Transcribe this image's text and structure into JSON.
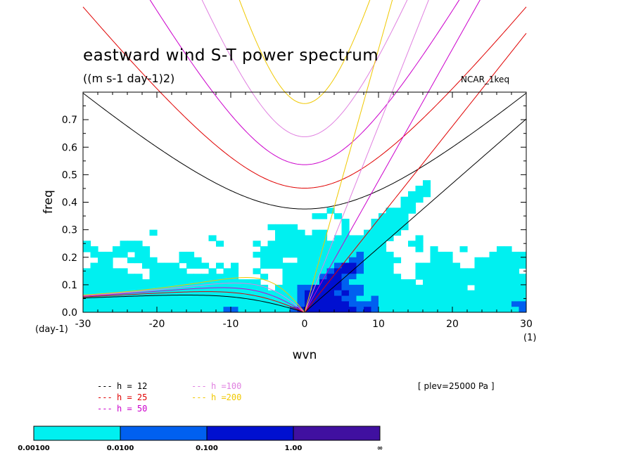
{
  "chart_data": {
    "type": "contour",
    "title": "eastward wind S-T power spectrum",
    "subtitle": "((m s-1 day-1)2)",
    "dataset": "NCAR_1keq",
    "xlabel": "wvn",
    "ylabel": "freq",
    "x_unit": "(1)",
    "y_unit": "(day-1)",
    "xlim": [
      -30,
      30
    ],
    "ylim": [
      0,
      0.8
    ],
    "xticks": [
      "-30",
      "-20",
      "-10",
      "0",
      "10",
      "20",
      "30"
    ],
    "yticks": [
      "0.0",
      "0.1",
      "0.2",
      "0.3",
      "0.4",
      "0.5",
      "0.6",
      "0.7"
    ],
    "plev_note": "[ plev=25000 Pa ]",
    "equivalent_depths": [
      {
        "label": "h = 12",
        "h": 12,
        "color": "#000000"
      },
      {
        "label": "h = 25",
        "h": 25,
        "color": "#e00000"
      },
      {
        "label": "h = 50",
        "h": 50,
        "color": "#cc00cc"
      },
      {
        "label": "h =100",
        "h": 100,
        "color": "#e080e0"
      },
      {
        "label": "h =200",
        "h": 200,
        "color": "#f0c800"
      }
    ],
    "colorbar": {
      "levels": [
        "0.00100",
        "0.0100",
        "0.100",
        "1.00",
        "∞"
      ],
      "colors": [
        "#00f0f0",
        "#0060f0",
        "#0010d0",
        "#4010a0"
      ]
    }
  }
}
